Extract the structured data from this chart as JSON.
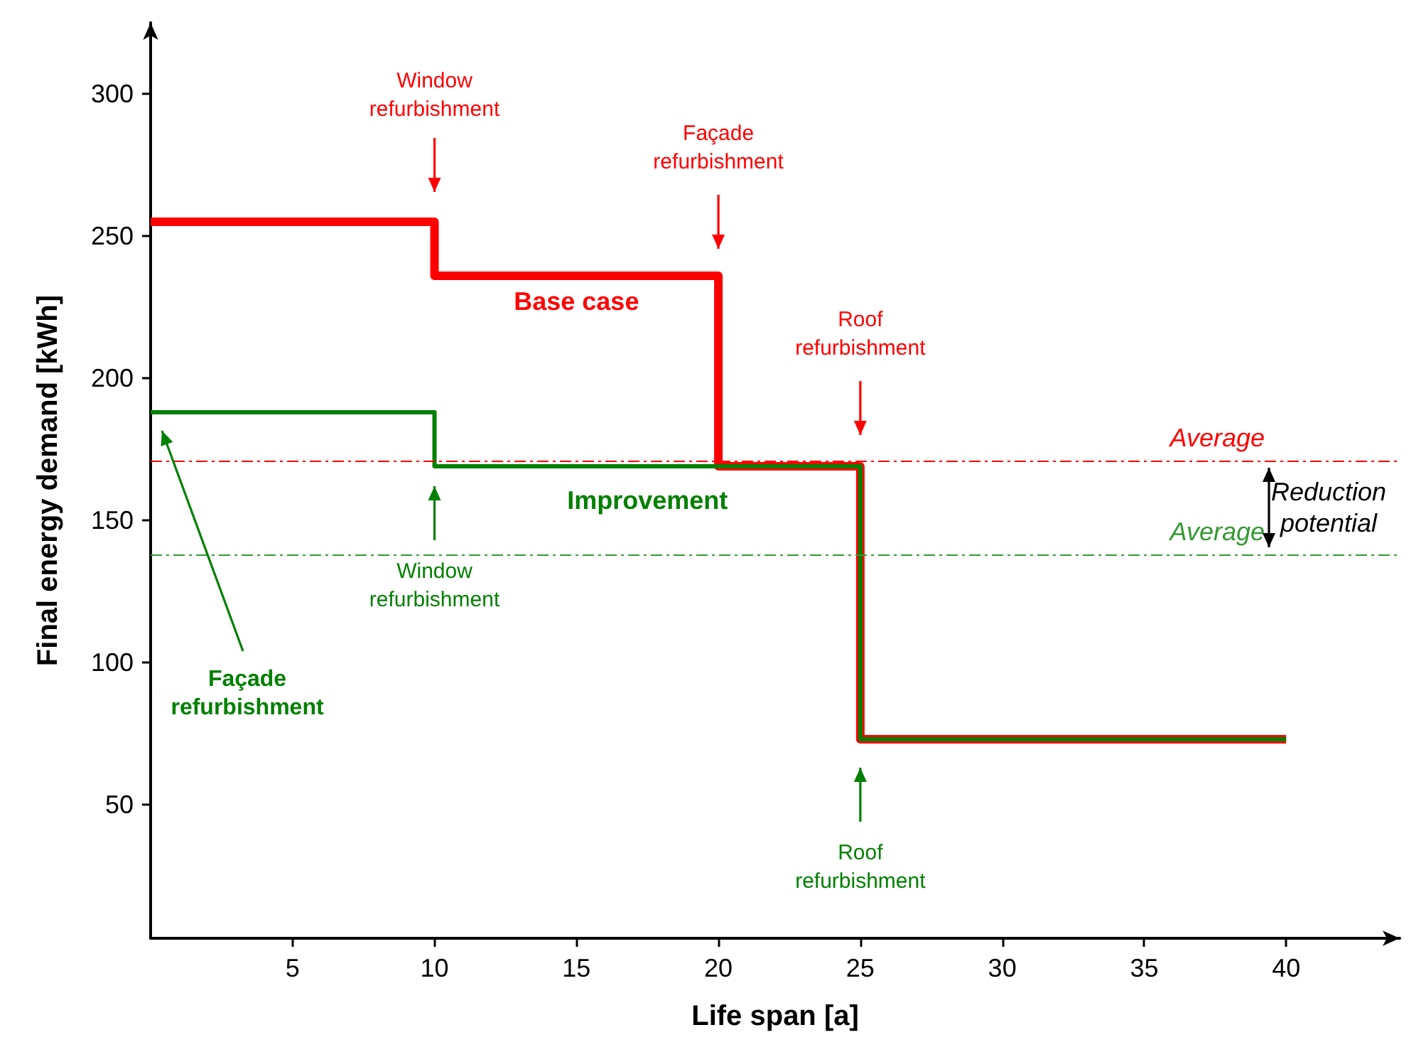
{
  "chart_data": {
    "type": "step",
    "xlabel": "Life span [a]",
    "ylabel": "Final energy demand [kWh]",
    "xlim": [
      0,
      44
    ],
    "xticks": [
      5,
      10,
      15,
      20,
      25,
      30,
      35,
      40
    ],
    "ylim": [
      3,
      325
    ],
    "yticks": [
      50,
      100,
      150,
      200,
      250,
      300
    ],
    "series": [
      {
        "name": "Base case",
        "color": "#ff0000",
        "x": [
          0,
          10,
          20,
          25,
          40
        ],
        "values": [
          255,
          236,
          169,
          73,
          73
        ]
      },
      {
        "name": "Improvement",
        "color": "#008000",
        "x": [
          0,
          10,
          25,
          40
        ],
        "values": [
          188,
          169,
          73,
          73
        ]
      }
    ],
    "ref_lines": [
      {
        "axis": "y",
        "value": 171,
        "label": "Average",
        "color": "#ff0000",
        "line_style": "dashed"
      },
      {
        "axis": "y",
        "value": 138,
        "label": "Average",
        "color": "#339933",
        "line_style": "dashed"
      }
    ],
    "annotations": [
      "Window refurbishment",
      "Façade refurbishment",
      "Roof refurbishment",
      "Window refurbishment",
      "Roof refurbishment",
      "Façade refurbishment",
      "Reduction potential"
    ],
    "grid": false,
    "legend": false,
    "marker": "none",
    "line_style": "solid"
  }
}
